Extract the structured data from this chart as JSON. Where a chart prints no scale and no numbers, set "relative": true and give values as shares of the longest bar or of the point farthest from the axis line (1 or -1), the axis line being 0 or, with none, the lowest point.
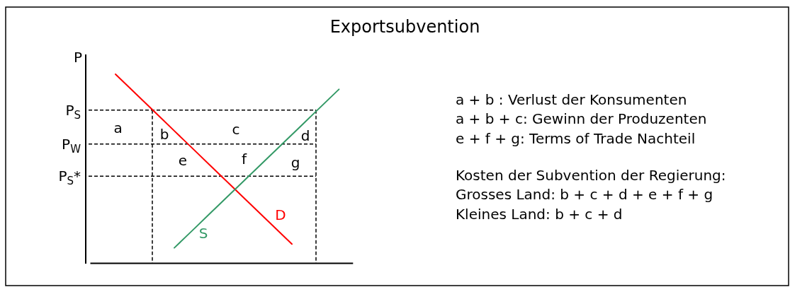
{
  "chart_data": {
    "type": "line",
    "title": "Exportsubvention",
    "ylabel": "P",
    "relative": true,
    "categories": [
      null,
      null,
      null,
      null,
      null,
      null,
      null,
      null,
      null,
      null,
      null,
      null,
      null,
      null,
      null,
      null,
      null,
      null,
      null,
      null,
      null,
      null,
      null
    ],
    "series": [
      {
        "name": "D",
        "color": "#ff0000",
        "values": [
          null,
          null,
          1.0,
          0.94,
          0.88,
          0.82,
          0.76,
          0.7,
          0.64,
          0.58,
          0.52,
          0.46,
          0.4,
          0.34,
          0.28,
          0.22,
          0.16,
          0.1,
          null,
          null,
          null,
          null,
          null
        ]
      },
      {
        "name": "S",
        "color": "#339966",
        "values": [
          null,
          null,
          null,
          null,
          null,
          null,
          null,
          0.08,
          0.14,
          0.2,
          0.26,
          0.32,
          0.38,
          0.44,
          0.5,
          0.56,
          0.62,
          0.68,
          0.74,
          0.8,
          0.86,
          0.92,
          null
        ]
      }
    ],
    "ref_lines": [
      {
        "axis": "y",
        "value": 0.81,
        "label": "P$_{S}$",
        "color": "#000000",
        "line_style": "dashed"
      },
      {
        "axis": "y",
        "value": 0.63,
        "label": "P$_{W}$",
        "color": "#000000",
        "line_style": "dashed"
      },
      {
        "axis": "y",
        "value": 0.46,
        "label": "P$_{S}$*",
        "color": "#000000",
        "line_style": "dashed"
      }
    ],
    "annotations": [
      "a",
      "b",
      "c",
      "d",
      "e",
      "f",
      "g",
      "a + b : Verlust der Konsumenten",
      "a + b + c: Gewinn der Produzenten",
      "e + f + g: Terms of Trade Nachteil",
      "Kosten der Subvention der Regierung:",
      "Grosses Land: b + c + d + e + f + g",
      "Kleines Land: b + c + d"
    ]
  }
}
